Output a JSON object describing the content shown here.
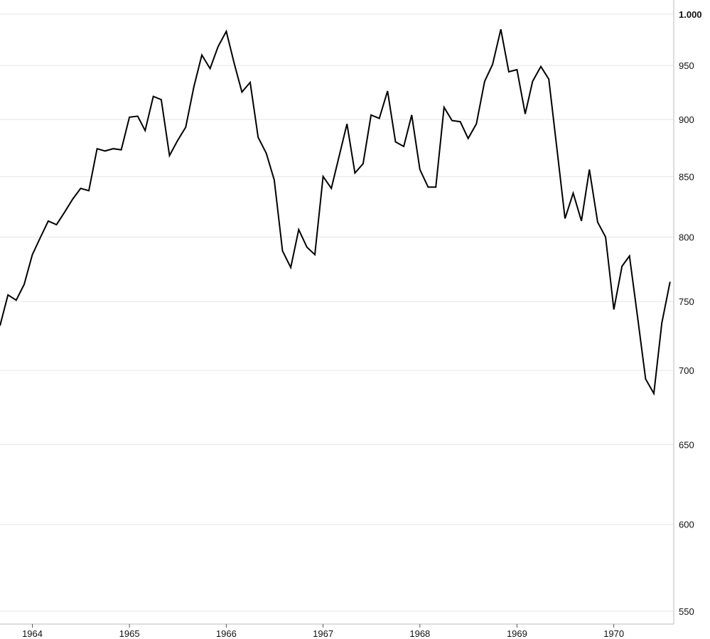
{
  "chart_data": {
    "type": "line",
    "title": "",
    "xlabel": "",
    "ylabel": "",
    "yscale": "log",
    "ylim": [
      545,
      1010
    ],
    "xlim": [
      "1963-09-01",
      "1970-08-15"
    ],
    "grid": true,
    "legend": "none",
    "line_color": "#000000",
    "grid_color": "#e6e6e6",
    "y_ticks": [
      {
        "value": 1000,
        "label": "1.000",
        "bold": true
      },
      {
        "value": 950,
        "label": "950",
        "bold": false
      },
      {
        "value": 900,
        "label": "900",
        "bold": false
      },
      {
        "value": 850,
        "label": "850",
        "bold": false
      },
      {
        "value": 800,
        "label": "800",
        "bold": false
      },
      {
        "value": 750,
        "label": "750",
        "bold": false
      },
      {
        "value": 700,
        "label": "700",
        "bold": false
      },
      {
        "value": 650,
        "label": "650",
        "bold": false
      },
      {
        "value": 600,
        "label": "600",
        "bold": false
      },
      {
        "value": 550,
        "label": "550",
        "bold": false
      }
    ],
    "x_ticks": [
      {
        "date": "1964-01-01",
        "label": "1964"
      },
      {
        "date": "1965-01-01",
        "label": "1965"
      },
      {
        "date": "1966-01-01",
        "label": "1966"
      },
      {
        "date": "1967-01-01",
        "label": "1967"
      },
      {
        "date": "1968-01-01",
        "label": "1968"
      },
      {
        "date": "1969-01-01",
        "label": "1969"
      },
      {
        "date": "1970-01-01",
        "label": "1970"
      }
    ],
    "series": [
      {
        "x": [
          "1963-09-01",
          "1963-10-01",
          "1963-11-01",
          "1963-12-01",
          "1964-01-01",
          "1964-02-01",
          "1964-03-01",
          "1964-04-01",
          "1964-05-01",
          "1964-06-01",
          "1964-07-01",
          "1964-08-01",
          "1964-09-01",
          "1964-10-01",
          "1964-11-01",
          "1964-12-01",
          "1965-01-01",
          "1965-02-01",
          "1965-03-01",
          "1965-04-01",
          "1965-05-01",
          "1965-06-01",
          "1965-07-01",
          "1965-08-01",
          "1965-09-01",
          "1965-10-01",
          "1965-11-01",
          "1965-12-01",
          "1966-01-01",
          "1966-02-01",
          "1966-03-01",
          "1966-04-01",
          "1966-05-01",
          "1966-06-01",
          "1966-07-01",
          "1966-08-01",
          "1966-09-01",
          "1966-10-01",
          "1966-11-01",
          "1966-12-01",
          "1967-01-01",
          "1967-02-01",
          "1967-03-01",
          "1967-04-01",
          "1967-05-01",
          "1967-06-01",
          "1967-07-01",
          "1967-08-01",
          "1967-09-01",
          "1967-10-01",
          "1967-11-01",
          "1967-12-01",
          "1968-01-01",
          "1968-02-01",
          "1968-03-01",
          "1968-04-01",
          "1968-05-01",
          "1968-06-01",
          "1968-07-01",
          "1968-08-01",
          "1968-09-01",
          "1968-10-01",
          "1968-11-01",
          "1968-12-01",
          "1969-01-01",
          "1969-02-01",
          "1969-03-01",
          "1969-04-01",
          "1969-05-01",
          "1969-06-01",
          "1969-07-01",
          "1969-08-01",
          "1969-09-01",
          "1969-10-01",
          "1969-11-01",
          "1969-12-01",
          "1970-01-01",
          "1970-02-01",
          "1970-03-01",
          "1970-04-01",
          "1970-05-01",
          "1970-06-01",
          "1970-07-01",
          "1970-08-01"
        ],
        "values": [
          732,
          755,
          751,
          763,
          786,
          800,
          813,
          810,
          820,
          831,
          840,
          838,
          874,
          872,
          874,
          873,
          902,
          903,
          890,
          921,
          918,
          868,
          881,
          893,
          930,
          960,
          947,
          968,
          983,
          951,
          925,
          934,
          884,
          870,
          847,
          789,
          776,
          806,
          792,
          786,
          850,
          840,
          866,
          896,
          853,
          861,
          904,
          901,
          926,
          880,
          876,
          904,
          856,
          841,
          841,
          911,
          899,
          898,
          883,
          896,
          935,
          951,
          985,
          944,
          946,
          905,
          935,
          949,
          937,
          873,
          815,
          836,
          813,
          856,
          812,
          800,
          744,
          777,
          785,
          738,
          694,
          684,
          734,
          765
        ]
      }
    ]
  }
}
